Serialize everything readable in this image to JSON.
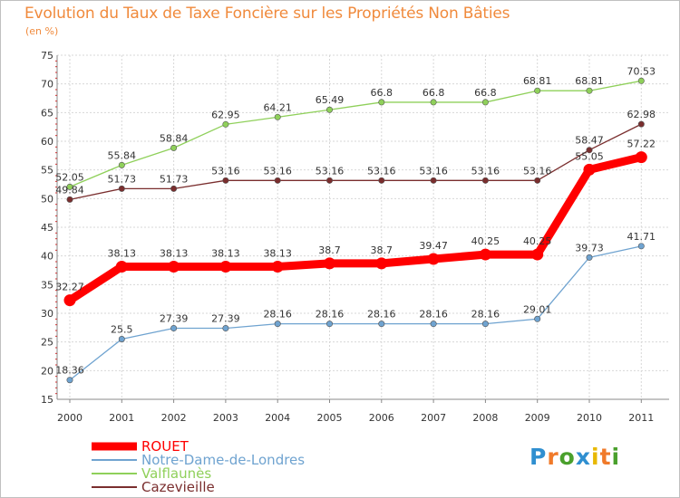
{
  "title": "Evolution du Taux de Taxe Foncière sur les Propriétés Non Bâties",
  "subtitle": "(en %)",
  "logo": {
    "text": "Proxiti",
    "letters": [
      "P",
      "r",
      "o",
      "x",
      "i",
      "t",
      "i"
    ],
    "colors": [
      "#2f8fd0",
      "#f07a2a",
      "#4aa02c",
      "#2f8fd0",
      "#e8b800",
      "#f07a2a",
      "#4aa02c"
    ]
  },
  "chart_data": {
    "type": "line",
    "title": "Evolution du Taux de Taxe Foncière sur les Propriétés Non Bâties",
    "ylabel": "(en %)",
    "xlabel": "",
    "x": [
      "2000",
      "2001",
      "2002",
      "2003",
      "2004",
      "2005",
      "2006",
      "2007",
      "2008",
      "2009",
      "2010",
      "2011"
    ],
    "yticks": [
      15,
      20,
      25,
      30,
      35,
      40,
      45,
      50,
      55,
      60,
      65,
      70,
      75
    ],
    "ylim": [
      15,
      75
    ],
    "grid": true,
    "legend_position": "bottom-left",
    "series": [
      {
        "name": "ROUET",
        "color": "#ff0000",
        "weight": "heavy",
        "values": [
          32.27,
          38.13,
          38.13,
          38.13,
          38.13,
          38.7,
          38.7,
          39.47,
          40.25,
          40.25,
          55.05,
          57.22
        ],
        "labels": [
          "32.27",
          "38.13",
          "38.13",
          "38.13",
          "38.13",
          "38.7",
          "38.7",
          "39.47",
          "40.25",
          "40.25",
          "55.05",
          "57.22"
        ]
      },
      {
        "name": "Notre-Dame-de-Londres",
        "color": "#6fa3d0",
        "weight": "thin",
        "values": [
          18.36,
          25.5,
          27.39,
          27.39,
          28.16,
          28.16,
          28.16,
          28.16,
          28.16,
          29.01,
          39.73,
          41.71
        ],
        "labels": [
          "18.36",
          "25.5",
          "27.39",
          "27.39",
          "28.16",
          "28.16",
          "28.16",
          "28.16",
          "28.16",
          "29.01",
          "39.73",
          "41.71"
        ]
      },
      {
        "name": "Valflaunès",
        "color": "#8fd05a",
        "weight": "thin",
        "values": [
          52.05,
          55.84,
          58.84,
          62.95,
          64.21,
          65.49,
          66.8,
          66.8,
          66.8,
          68.81,
          68.81,
          70.53
        ],
        "labels": [
          "52.05",
          "55.84",
          "58.84",
          "62.95",
          "64.21",
          "65.49",
          "66.8",
          "66.8",
          "66.8",
          "68.81",
          "68.81",
          "70.53"
        ]
      },
      {
        "name": "Cazevieille",
        "color": "#7a2e2e",
        "weight": "thin",
        "values": [
          49.84,
          51.73,
          51.73,
          53.16,
          53.16,
          53.16,
          53.16,
          53.16,
          53.16,
          53.16,
          58.47,
          62.98
        ],
        "labels": [
          "49.84",
          "51.73",
          "51.73",
          "53.16",
          "53.16",
          "53.16",
          "53.16",
          "53.16",
          "53.16",
          "53.16",
          "58.47",
          "62.98"
        ]
      }
    ]
  }
}
